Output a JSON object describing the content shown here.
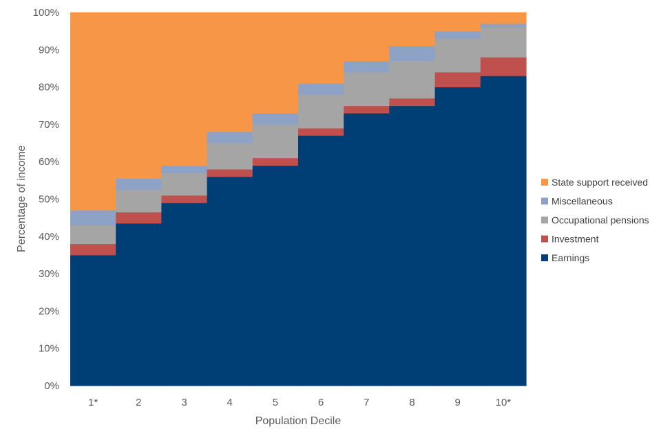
{
  "chart_data": {
    "type": "bar",
    "stacked": true,
    "percent_stacked": true,
    "gap_width": 0,
    "xlabel": "Population Decile",
    "ylabel": "Percentage of income",
    "categories": [
      "1*",
      "2",
      "3",
      "4",
      "5",
      "6",
      "7",
      "8",
      "9",
      "10*"
    ],
    "ylim": [
      0,
      100
    ],
    "y_ticks": [
      "0%",
      "10%",
      "20%",
      "30%",
      "40%",
      "50%",
      "60%",
      "70%",
      "80%",
      "90%",
      "100%"
    ],
    "grid": false,
    "legend_position": "right",
    "series": [
      {
        "name": "Earnings",
        "color": "#003F75",
        "values": [
          35,
          43.5,
          49,
          56,
          59,
          67,
          73,
          75,
          80,
          83
        ]
      },
      {
        "name": "Investment",
        "color": "#C0504D",
        "values": [
          3,
          3,
          2,
          2,
          2,
          2,
          2,
          2,
          4,
          5
        ]
      },
      {
        "name": "Occupational pensions",
        "color": "#A5A5A5",
        "values": [
          5,
          6,
          6,
          7,
          9,
          9,
          9,
          10,
          9,
          8
        ]
      },
      {
        "name": "Miscellaneous",
        "color": "#8EA2C6",
        "values": [
          4,
          3,
          2,
          3,
          3,
          3,
          3,
          4,
          2,
          1
        ]
      },
      {
        "name": "State support received",
        "color": "#F79646",
        "values": [
          53,
          44.5,
          41,
          32,
          27,
          19,
          13,
          9,
          5,
          3
        ]
      }
    ]
  }
}
